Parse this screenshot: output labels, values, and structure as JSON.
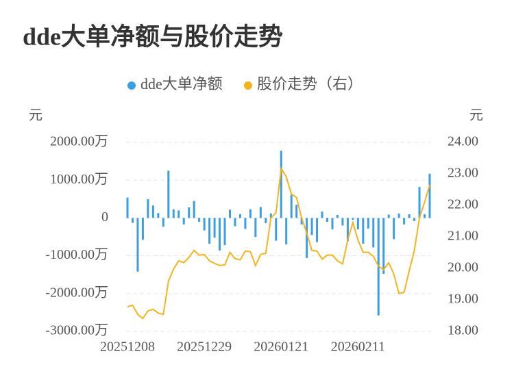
{
  "chart_data": {
    "type": "bar_line",
    "title": "dde大单净额与股价走势",
    "y_axis_label": "元",
    "y2_axis_label": "元",
    "categories": [
      "20251208",
      null,
      null,
      null,
      null,
      null,
      null,
      null,
      null,
      null,
      null,
      null,
      null,
      null,
      null,
      "20251229",
      null,
      null,
      null,
      null,
      null,
      null,
      null,
      null,
      null,
      null,
      null,
      null,
      null,
      null,
      "20260121",
      null,
      null,
      null,
      null,
      null,
      null,
      null,
      null,
      null,
      null,
      null,
      null,
      null,
      null,
      "20260211",
      null,
      null,
      null,
      null,
      null,
      null,
      null,
      null,
      null,
      null,
      null,
      null,
      null,
      null
    ],
    "series": [
      {
        "name": "dde大单净额",
        "type": "bar",
        "color": "#3a9ee4",
        "values": [
          540,
          -130,
          -1420,
          -580,
          500,
          330,
          130,
          -230,
          1250,
          230,
          200,
          -170,
          280,
          450,
          -100,
          -330,
          -680,
          -520,
          -860,
          -720,
          220,
          -220,
          100,
          -290,
          230,
          -500,
          290,
          -140,
          120,
          -600,
          1780,
          -700,
          620,
          350,
          -170,
          -1060,
          -450,
          -640,
          170,
          -100,
          -300,
          80,
          -200,
          -620,
          -50,
          -300,
          -680,
          -280,
          -780,
          -2580,
          -1480,
          90,
          -560,
          120,
          -170,
          100,
          -80,
          820,
          100,
          1170
        ]
      },
      {
        "name": "股价走势（右）",
        "type": "line",
        "axis": "y2",
        "color": "#f5b31e",
        "values": [
          18.78,
          18.83,
          18.54,
          18.41,
          18.65,
          18.7,
          18.58,
          18.54,
          19.59,
          19.98,
          20.24,
          20.18,
          20.35,
          20.57,
          20.42,
          20.44,
          20.24,
          20.16,
          20.09,
          20.11,
          20.51,
          20.31,
          20.27,
          20.55,
          20.53,
          20.09,
          20.44,
          20.48,
          21.6,
          21.77,
          23.17,
          22.91,
          22.36,
          22.25,
          21.6,
          21.12,
          20.57,
          20.55,
          20.29,
          20.42,
          20.42,
          20.24,
          20.14,
          20.9,
          21.45,
          20.9,
          20.51,
          20.51,
          20.38,
          20.07,
          19.96,
          20.18,
          19.81,
          19.2,
          19.24,
          19.92,
          20.57,
          21.6,
          22.1,
          22.65
        ]
      }
    ],
    "ylim": [
      -3000,
      2000
    ],
    "yticks": [
      {
        "value": 2000,
        "label": "2000.00万"
      },
      {
        "value": 1000,
        "label": "1000.00万"
      },
      0,
      {
        "value": -1000,
        "label": "-1000.00万"
      },
      {
        "value": -2000,
        "label": "-2000.00万"
      },
      {
        "value": -3000,
        "label": "-3000.00万"
      }
    ],
    "y2lim": [
      18,
      24
    ],
    "y2ticks": [
      {
        "value": 24,
        "label": "24.00"
      },
      {
        "value": 23,
        "label": "23.00"
      },
      {
        "value": 22,
        "label": "22.00"
      },
      {
        "value": 21,
        "label": "21.00"
      },
      {
        "value": 20,
        "label": "20.00"
      },
      {
        "value": 19,
        "label": "19.00"
      },
      {
        "value": 18,
        "label": "18.00"
      }
    ],
    "grid": true
  }
}
